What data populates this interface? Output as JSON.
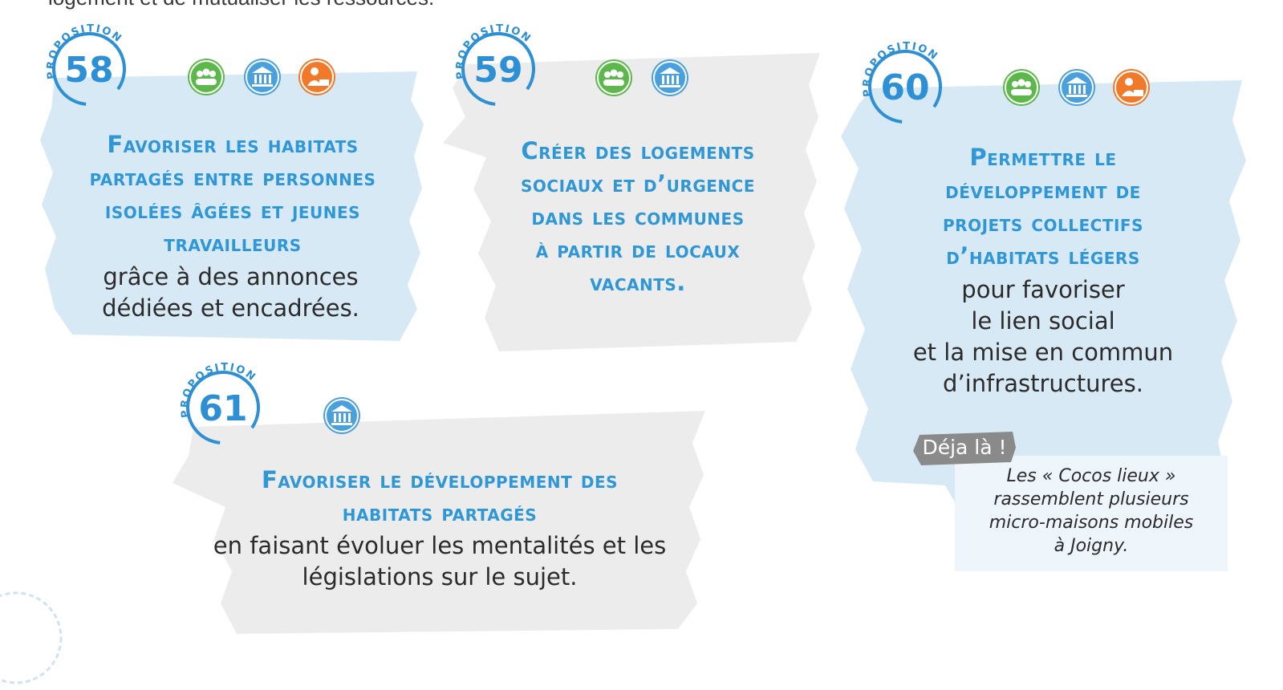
{
  "top_text": "logement et de mutualiser les ressources.",
  "badge_label": "PROPOSITION",
  "colors": {
    "accent_blue": "#2f97d6",
    "brush_blue": "#d8e9f6",
    "brush_gray": "#ececec",
    "icon_green": "#5cb84a",
    "icon_blue": "#4aa0dc",
    "icon_orange": "#f07a2a"
  },
  "proposals": [
    {
      "number": "58",
      "icons": [
        "community-icon",
        "institution-icon",
        "worker-icon"
      ],
      "title_lines": [
        "Favoriser les habitats",
        "partagés entre personnes",
        "isolées âgées et jeunes",
        "travailleurs"
      ],
      "body_lines": [
        "grâce à des annonces",
        "dédiées et encadrées."
      ]
    },
    {
      "number": "59",
      "icons": [
        "community-icon",
        "institution-icon"
      ],
      "title_lines": [
        "Créer des logements",
        "sociaux et d’urgence",
        "dans les communes",
        "à partir de locaux",
        "vacants."
      ],
      "body_lines": []
    },
    {
      "number": "60",
      "icons": [
        "community-icon",
        "institution-icon",
        "worker-icon"
      ],
      "title_lines": [
        "Permettre le",
        "développement de",
        "projets collectifs",
        "d’habitats légers"
      ],
      "body_lines": [
        "pour favoriser",
        "le lien social",
        "et la mise en commun",
        "d’infrastructures."
      ]
    },
    {
      "number": "61",
      "icons": [
        "institution-icon"
      ],
      "title_lines": [
        "Favoriser le développement des",
        "habitats partagés"
      ],
      "body_lines": [
        "en faisant évoluer les mentalités et les",
        "législations sur le sujet."
      ]
    }
  ],
  "callout": {
    "tag": "Déja là !",
    "lines": [
      "Les « Cocos lieux »",
      "rassemblent plusieurs",
      "micro-maisons mobiles",
      "à Joigny."
    ]
  }
}
